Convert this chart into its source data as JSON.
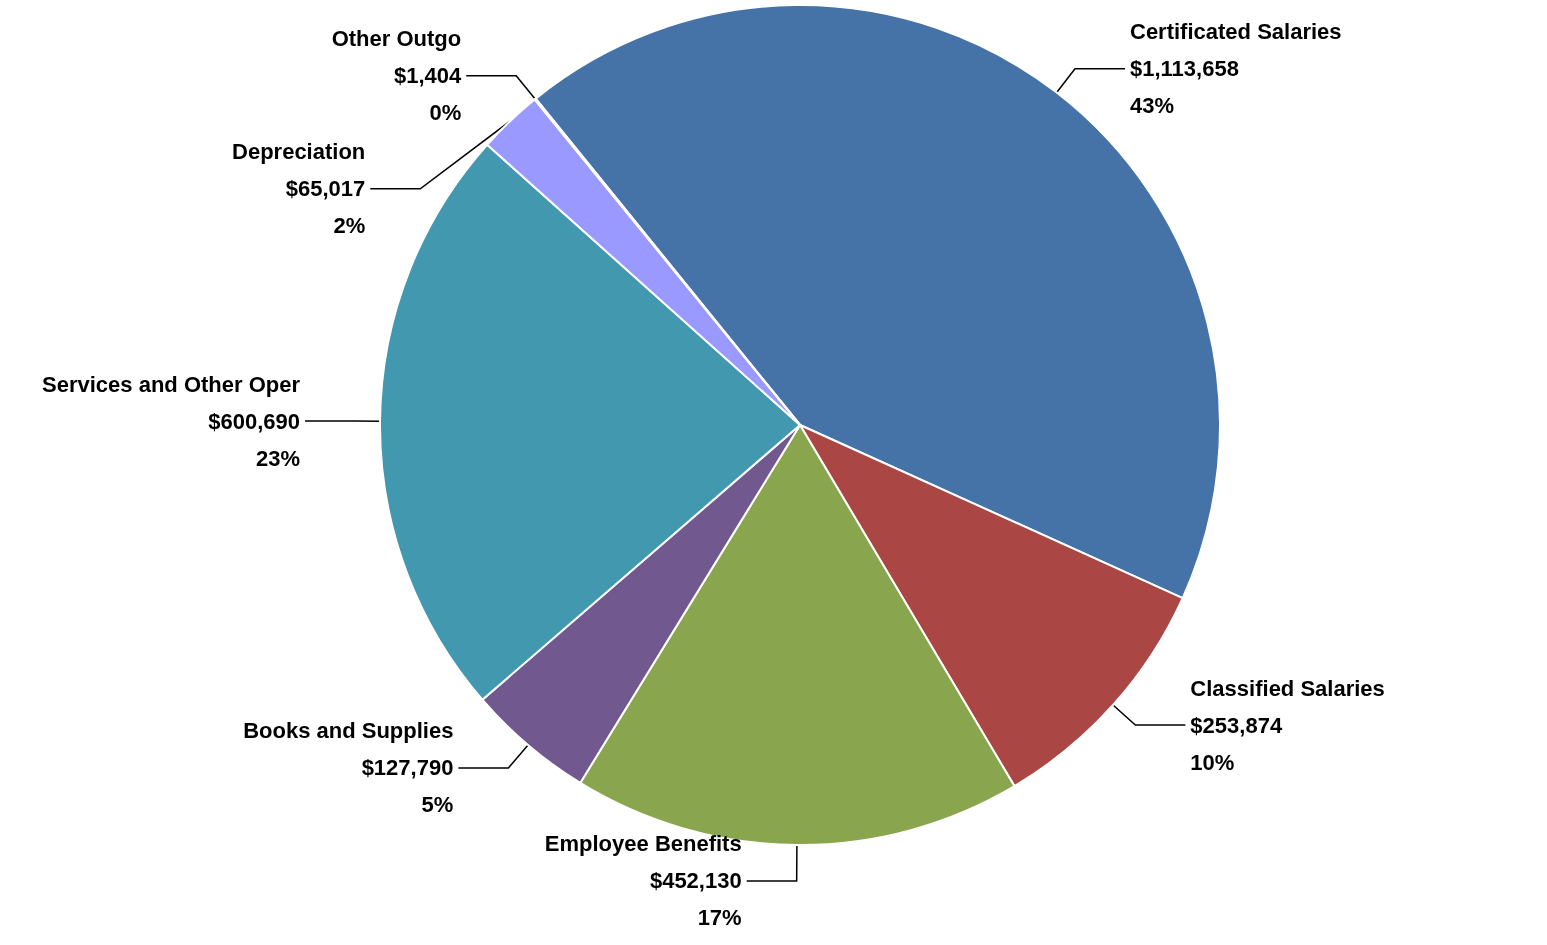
{
  "chart_data": {
    "type": "pie",
    "categories": [
      "Certificated Salaries",
      "Classified Salaries",
      "Employee Benefits",
      "Books and Supplies",
      "Services and Other Oper",
      "Depreciation",
      "Other Outgo"
    ],
    "values": [
      1113658,
      253874,
      452130,
      127790,
      600690,
      65017,
      1404
    ],
    "value_labels": [
      "$1,113,658\n43%",
      "$253,874\n10%",
      "$452,130\n17%",
      "$127,790\n5%",
      "$600,690\n23%",
      "$65,017\n2%",
      "$1,404\n0%"
    ],
    "colors": [
      "#4572a7",
      "#aa4643",
      "#89a54e",
      "#71588f",
      "#4198af",
      "#9999ff",
      "#1a1a1a"
    ],
    "legend": false
  }
}
